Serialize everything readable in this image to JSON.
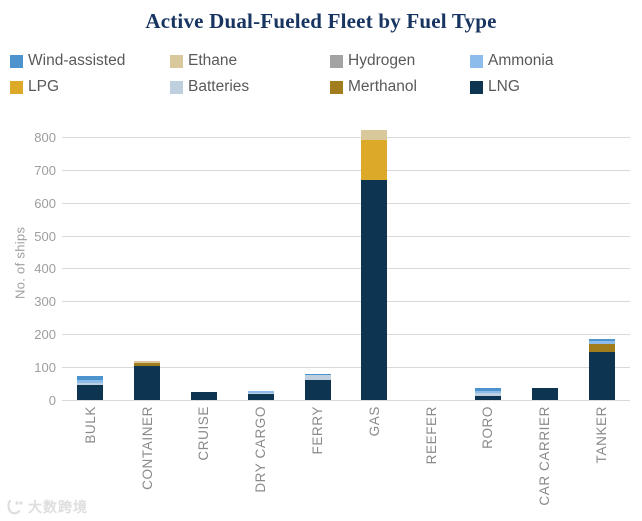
{
  "title": "Active Dual-Fueled Fleet by Fuel Type",
  "legend": {
    "items": [
      {
        "label": "Wind-assisted",
        "color": "#4d94cf"
      },
      {
        "label": "Ethane",
        "color": "#d9c89c"
      },
      {
        "label": "Hydrogen",
        "color": "#a3a3a3"
      },
      {
        "label": "Ammonia",
        "color": "#8cbceb"
      },
      {
        "label": "LPG",
        "color": "#dda928"
      },
      {
        "label": "Batteries",
        "color": "#becfdf"
      },
      {
        "label": "Merthanol",
        "color": "#a17d1e"
      },
      {
        "label": "LNG",
        "color": "#0d3552"
      }
    ]
  },
  "watermark": {
    "text": "大数跨境"
  },
  "chart_data": {
    "type": "bar",
    "stacked": true,
    "title": "Active Dual-Fueled Fleet by Fuel Type",
    "xlabel": "",
    "ylabel": "No. of ships",
    "ylim": [
      0,
      800
    ],
    "yticks": [
      0,
      100,
      200,
      300,
      400,
      500,
      600,
      700,
      800
    ],
    "grid": "horizontal",
    "gridline_color": "#d9d9d9",
    "legend_position": "top",
    "categories": [
      "BULK",
      "CONTAINER",
      "CRUISE",
      "DRY CARGO",
      "FERRY",
      "GAS",
      "REEFER",
      "RORO",
      "CAR CARRIER",
      "TANKER"
    ],
    "stack_order_bottom_to_top": [
      "LNG",
      "Merthanol",
      "Batteries",
      "LPG",
      "Ammonia",
      "Hydrogen",
      "Ethane",
      "Wind-assisted"
    ],
    "series": [
      {
        "name": "LNG",
        "color": "#0d3552",
        "values": [
          46,
          104,
          25,
          17,
          60,
          670,
          0,
          12,
          35,
          145
        ]
      },
      {
        "name": "Merthanol",
        "color": "#a17d1e",
        "values": [
          0,
          10,
          0,
          0,
          0,
          0,
          0,
          0,
          0,
          24
        ]
      },
      {
        "name": "Batteries",
        "color": "#becfdf",
        "values": [
          5,
          0,
          0,
          4,
          17,
          0,
          0,
          8,
          0,
          2
        ]
      },
      {
        "name": "LPG",
        "color": "#dda928",
        "values": [
          0,
          0,
          0,
          0,
          0,
          122,
          0,
          0,
          0,
          0
        ]
      },
      {
        "name": "Ammonia",
        "color": "#8cbceb",
        "values": [
          10,
          0,
          0,
          7,
          0,
          0,
          0,
          8,
          0,
          8
        ]
      },
      {
        "name": "Hydrogen",
        "color": "#a3a3a3",
        "values": [
          0,
          0,
          0,
          0,
          0,
          0,
          0,
          0,
          0,
          0
        ]
      },
      {
        "name": "Ethane",
        "color": "#d9c89c",
        "values": [
          0,
          4,
          0,
          0,
          0,
          28,
          0,
          0,
          0,
          0
        ]
      },
      {
        "name": "Wind-assisted",
        "color": "#4d94cf",
        "values": [
          11,
          0,
          0,
          0,
          3,
          0,
          0,
          8,
          0,
          8
        ]
      }
    ],
    "totals": [
      72,
      118,
      25,
      28,
      80,
      820,
      0,
      36,
      35,
      187
    ]
  }
}
